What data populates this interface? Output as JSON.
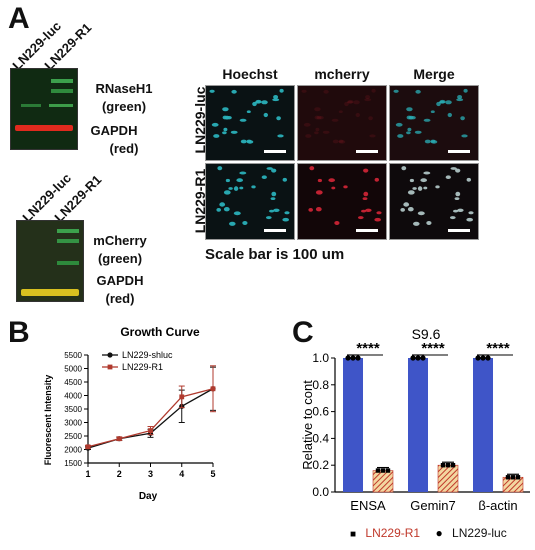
{
  "panels": {
    "a": "A",
    "b": "B",
    "c": "C"
  },
  "blot_top": {
    "lanes": [
      "LN229-luc",
      "LN229-R1"
    ],
    "labels": [
      "RNaseH1",
      "(green)",
      "GAPDH",
      "(red)"
    ]
  },
  "blot_bottom": {
    "lanes": [
      "LN229-luc",
      "LN229-R1"
    ],
    "labels": [
      "mCherry",
      "(green)",
      "GAPDH",
      "(red)"
    ]
  },
  "microscopy": {
    "columns": [
      "Hoechst",
      "mcherry",
      "Merge"
    ],
    "rows": [
      "LN229-luc",
      "LN229-R1"
    ],
    "caption": "Scale bar is 100 um",
    "colors": {
      "hoechst": "#2ab0b8",
      "mcherry": "#e0283a",
      "merge": "#c0d8d8"
    }
  },
  "chart_data": [
    {
      "type": "line",
      "title": "Growth Curve",
      "xlabel": "Day",
      "ylabel": "Fluorescent Intensity",
      "x": [
        1,
        2,
        3,
        4,
        5
      ],
      "xlim": [
        1,
        5
      ],
      "ylim": [
        1500,
        5500
      ],
      "y_ticks": [
        1500,
        2000,
        2500,
        3000,
        3500,
        4000,
        4500,
        5000,
        5500
      ],
      "x_ticks": [
        1,
        2,
        3,
        4,
        5
      ],
      "legend_position": "top-left",
      "series": [
        {
          "name": "LN229-shluc",
          "color": "#111111",
          "values": [
            2050,
            2400,
            2600,
            3600,
            4250
          ],
          "err": [
            50,
            60,
            150,
            600,
            800
          ]
        },
        {
          "name": "LN229-R1",
          "color": "#b03a2e",
          "values": [
            2100,
            2400,
            2700,
            3950,
            4250
          ],
          "err": [
            50,
            60,
            150,
            400,
            850
          ]
        }
      ]
    },
    {
      "type": "bar",
      "ylabel": "Relative to cont",
      "annotation": "S9.6",
      "ylim": [
        0,
        1.0
      ],
      "y_ticks": [
        "0.0",
        "0.2",
        "0.4",
        "0.6",
        "0.8",
        "1.0"
      ],
      "categories": [
        "ENSA",
        "Gemin7",
        "β-actin"
      ],
      "significance": [
        "****",
        "****",
        "****"
      ],
      "legend_position": "bottom",
      "series": [
        {
          "name": "LN229-luc",
          "color": "#3f55c8",
          "marker": "●",
          "values": [
            1.0,
            1.0,
            1.0
          ]
        },
        {
          "name": "LN229-R1",
          "color": "#c0392b",
          "marker": "■",
          "values": [
            0.16,
            0.2,
            0.11
          ]
        }
      ]
    }
  ]
}
